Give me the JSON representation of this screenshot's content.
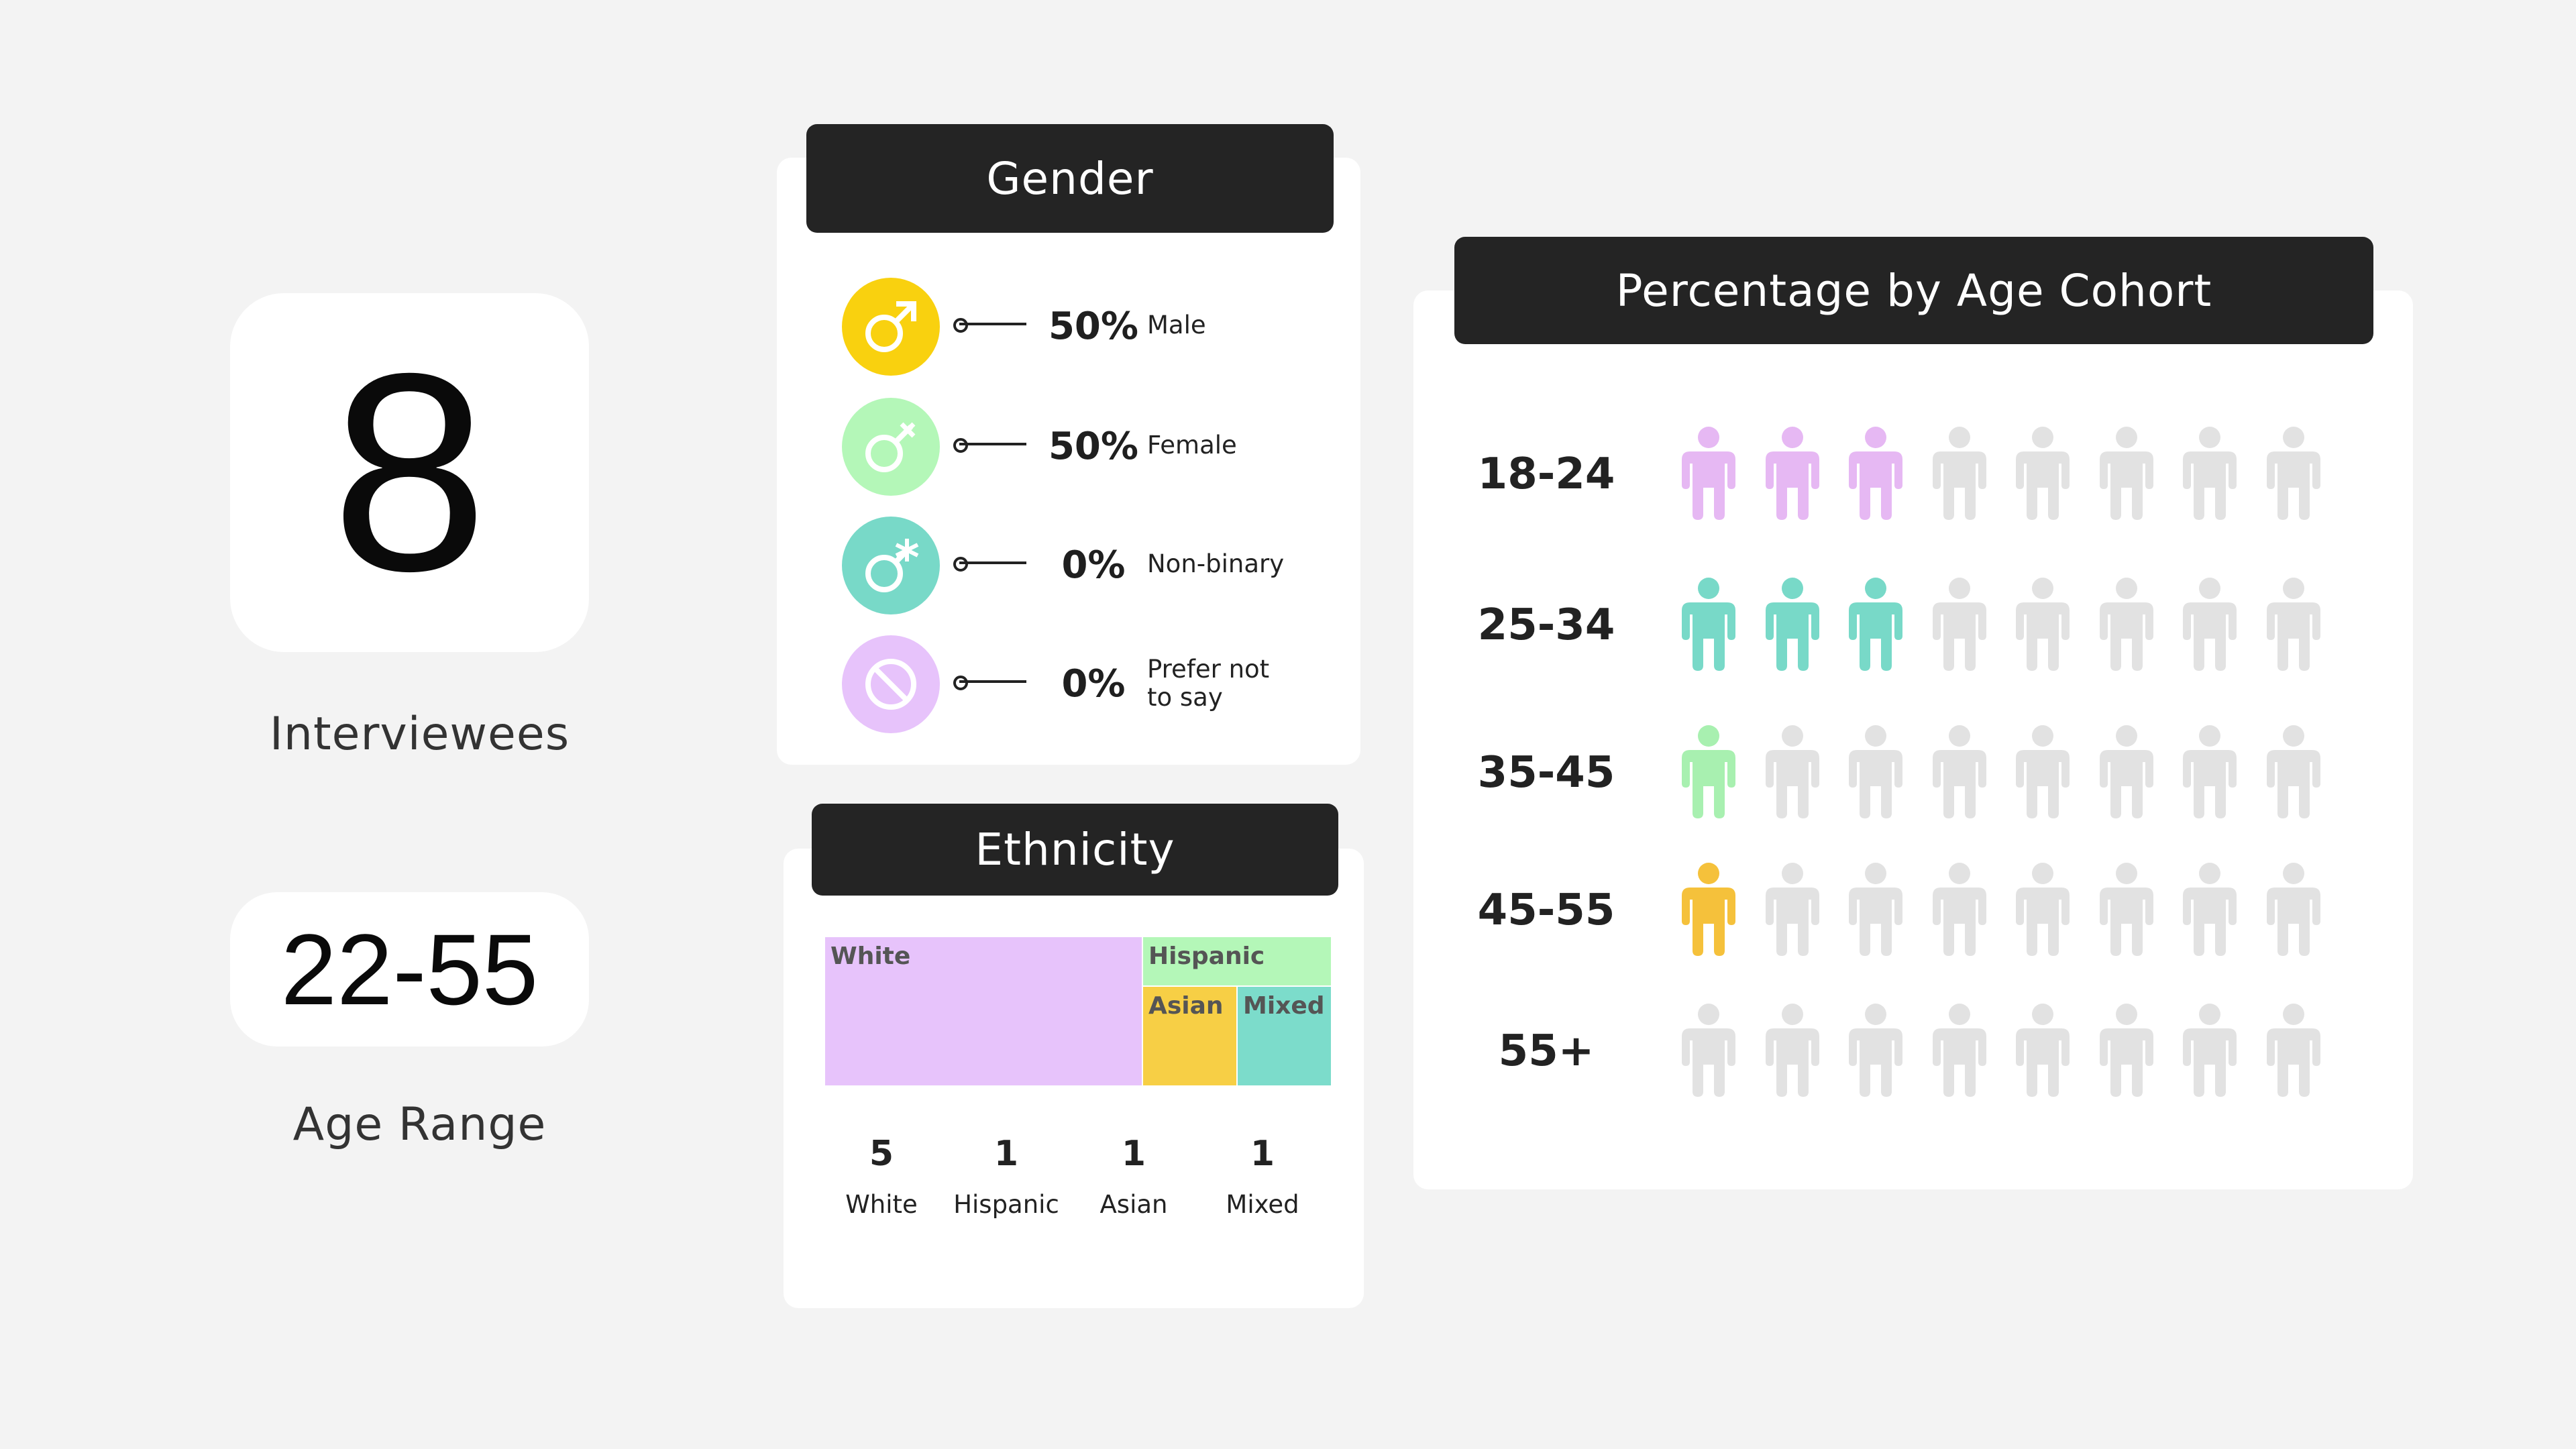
{
  "stats": {
    "interviewees_value": "8",
    "interviewees_label": "Interviewees",
    "age_range_value": "22-55",
    "age_range_label": "Age Range"
  },
  "gender": {
    "title": "Gender",
    "items": [
      {
        "pct": "50%",
        "label": "Male",
        "color": "#f9d10f",
        "icon": "male-icon"
      },
      {
        "pct": "50%",
        "label": "Female",
        "color": "#b4f7b8",
        "icon": "female-icon"
      },
      {
        "pct": "0%",
        "label": "Non-binary",
        "color": "#78d9c8",
        "icon": "non-binary-icon"
      },
      {
        "pct": "0%",
        "label": "Prefer not to say",
        "color": "#e7c3fb",
        "icon": "prefer-not-to-say-icon"
      }
    ]
  },
  "ethnicity": {
    "title": "Ethnicity",
    "tiles": {
      "white": "White",
      "hispanic": "Hispanic",
      "asian": "Asian",
      "mixed": "Mixed"
    },
    "counts": [
      {
        "value": "5",
        "label": "White"
      },
      {
        "value": "1",
        "label": "Hispanic"
      },
      {
        "value": "1",
        "label": "Asian"
      },
      {
        "value": "1",
        "label": "Mixed"
      }
    ]
  },
  "chart_data": {
    "type": "pictogram",
    "title": "Percentage by Age Cohort",
    "icons_per_row": 8,
    "inactive_color": "#e2e2e2",
    "rows": [
      {
        "label": "18-24",
        "count": 3,
        "color": "#e6b8f3"
      },
      {
        "label": "25-34",
        "count": 3,
        "color": "#78d9c8"
      },
      {
        "label": "35-45",
        "count": 1,
        "color": "#a8f0b0"
      },
      {
        "label": "45-55",
        "count": 1,
        "color": "#f5c13b"
      },
      {
        "label": "55+",
        "count": 0,
        "color": "#e2e2e2"
      }
    ]
  },
  "colors": {
    "white_tile": "#e7c3fb",
    "hispanic_tile": "#b4f7b8",
    "asian_tile": "#f7cf45",
    "mixed_tile": "#7cdccb"
  }
}
